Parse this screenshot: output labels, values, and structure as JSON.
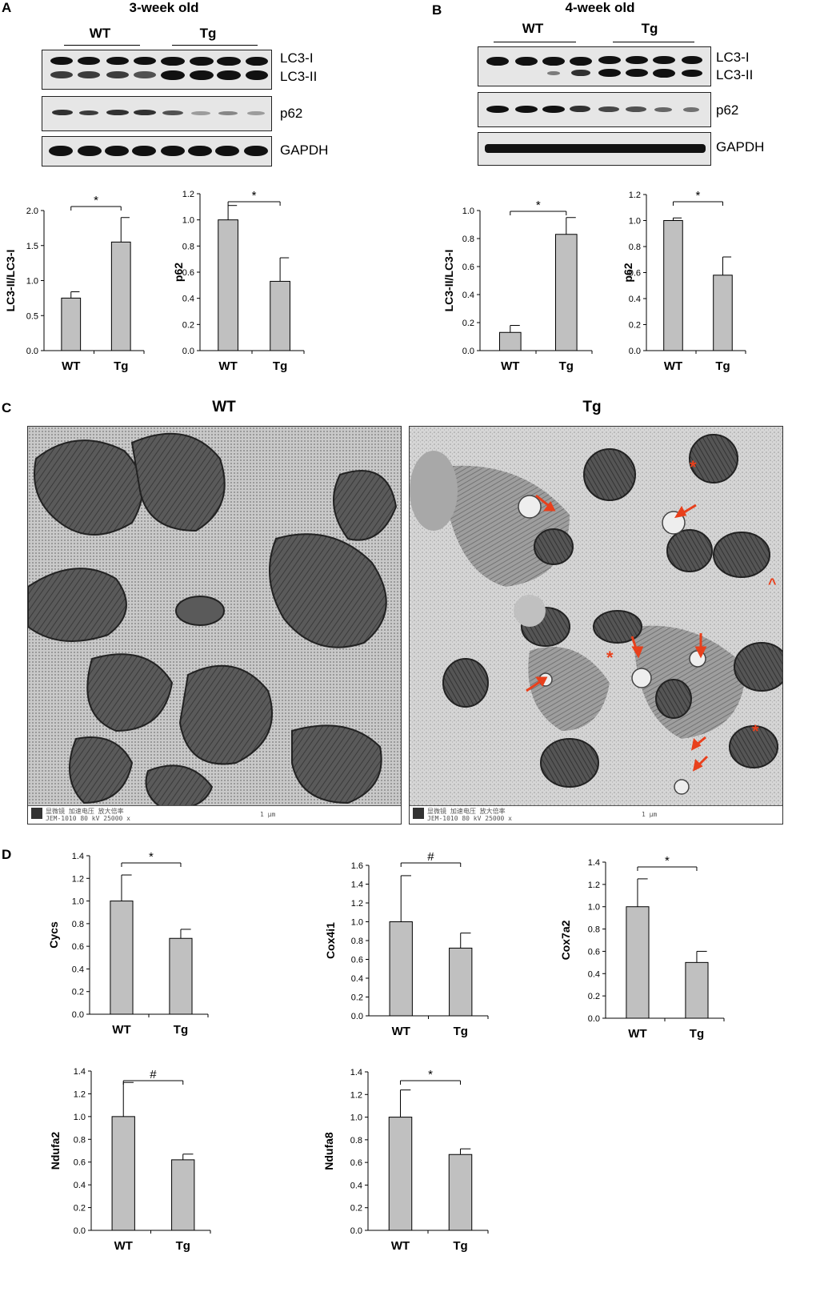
{
  "panelA": {
    "letter": "A",
    "title": "3-week old",
    "groups": [
      "WT",
      "Tg"
    ],
    "blots": [
      "LC3-I",
      "LC3-II",
      "p62",
      "GAPDH"
    ]
  },
  "panelB": {
    "letter": "B",
    "title": "4-week old",
    "groups": [
      "WT",
      "Tg"
    ],
    "blots": [
      "LC3-I",
      "LC3-II",
      "p62",
      "GAPDH"
    ]
  },
  "panelC": {
    "letter": "C",
    "left_title": "WT",
    "right_title": "Tg",
    "footer_text": "显微镜  加速电压  放大倍率",
    "footer_model": "JEM-1010   80 kV   25000 x",
    "scale_text": "1 μm",
    "annotation_color": "#e8401c"
  },
  "panelD": {
    "letter": "D"
  },
  "chart_data": [
    {
      "type": "bar",
      "panel": "A",
      "categories": [
        "WT",
        "Tg"
      ],
      "values": [
        0.75,
        1.55
      ],
      "errors": [
        0.09,
        0.35
      ],
      "ylabel": "LC3-II/LC3-I",
      "ylim": [
        0,
        2.0
      ],
      "yticks": [
        "0.0",
        "0.5",
        "1.0",
        "1.5",
        "2.0"
      ],
      "sig": "*"
    },
    {
      "type": "bar",
      "panel": "A",
      "categories": [
        "WT",
        "Tg"
      ],
      "values": [
        1.0,
        0.53
      ],
      "errors": [
        0.11,
        0.18
      ],
      "ylabel": "p62",
      "ylim": [
        0,
        1.2
      ],
      "yticks": [
        "0.0",
        "0.2",
        "0.4",
        "0.6",
        "0.8",
        "1.0",
        "1.2"
      ],
      "sig": "*"
    },
    {
      "type": "bar",
      "panel": "B",
      "categories": [
        "WT",
        "Tg"
      ],
      "values": [
        0.13,
        0.83
      ],
      "errors": [
        0.05,
        0.12
      ],
      "ylabel": "LC3-II/LC3-I",
      "ylim": [
        0,
        1.0
      ],
      "yticks": [
        "0.0",
        "0.2",
        "0.4",
        "0.6",
        "0.8",
        "1.0"
      ],
      "sig": "*"
    },
    {
      "type": "bar",
      "panel": "B",
      "categories": [
        "WT",
        "Tg"
      ],
      "values": [
        1.0,
        0.58
      ],
      "errors": [
        0.02,
        0.14
      ],
      "ylabel": "p62",
      "ylim": [
        0,
        1.2
      ],
      "yticks": [
        "0.0",
        "0.2",
        "0.4",
        "0.6",
        "0.8",
        "1.0",
        "1.2"
      ],
      "sig": "*"
    },
    {
      "type": "bar",
      "panel": "D",
      "categories": [
        "WT",
        "Tg"
      ],
      "values": [
        1.0,
        0.67
      ],
      "errors": [
        0.23,
        0.08
      ],
      "ylabel": "Cycs",
      "ylim": [
        0,
        1.4
      ],
      "yticks": [
        "0.0",
        "0.2",
        "0.4",
        "0.6",
        "0.8",
        "1.0",
        "1.2",
        "1.4"
      ],
      "sig": "*"
    },
    {
      "type": "bar",
      "panel": "D",
      "categories": [
        "WT",
        "Tg"
      ],
      "values": [
        1.0,
        0.72
      ],
      "errors": [
        0.49,
        0.16
      ],
      "ylabel": "Cox4i1",
      "ylim": [
        0,
        1.6
      ],
      "yticks": [
        "0.0",
        "0.2",
        "0.4",
        "0.6",
        "0.8",
        "1.0",
        "1.2",
        "1.4",
        "1.6"
      ],
      "sig": "#"
    },
    {
      "type": "bar",
      "panel": "D",
      "categories": [
        "WT",
        "Tg"
      ],
      "values": [
        1.0,
        0.5
      ],
      "errors": [
        0.25,
        0.1
      ],
      "ylabel": "Cox7a2",
      "ylim": [
        0,
        1.4
      ],
      "yticks": [
        "0.0",
        "0.2",
        "0.4",
        "0.6",
        "0.8",
        "1.0",
        "1.2",
        "1.4"
      ],
      "sig": "*"
    },
    {
      "type": "bar",
      "panel": "D",
      "categories": [
        "WT",
        "Tg"
      ],
      "values": [
        1.0,
        0.62
      ],
      "errors": [
        0.3,
        0.05
      ],
      "ylabel": "Ndufa2",
      "ylim": [
        0,
        1.4
      ],
      "yticks": [
        "0.0",
        "0.2",
        "0.4",
        "0.6",
        "0.8",
        "1.0",
        "1.2",
        "1.4"
      ],
      "sig": "#"
    },
    {
      "type": "bar",
      "panel": "D",
      "categories": [
        "WT",
        "Tg"
      ],
      "values": [
        1.0,
        0.67
      ],
      "errors": [
        0.24,
        0.05
      ],
      "ylabel": "Ndufa8",
      "ylim": [
        0,
        1.4
      ],
      "yticks": [
        "0.0",
        "0.2",
        "0.4",
        "0.6",
        "0.8",
        "1.0",
        "1.2",
        "1.4"
      ],
      "sig": "*"
    }
  ]
}
